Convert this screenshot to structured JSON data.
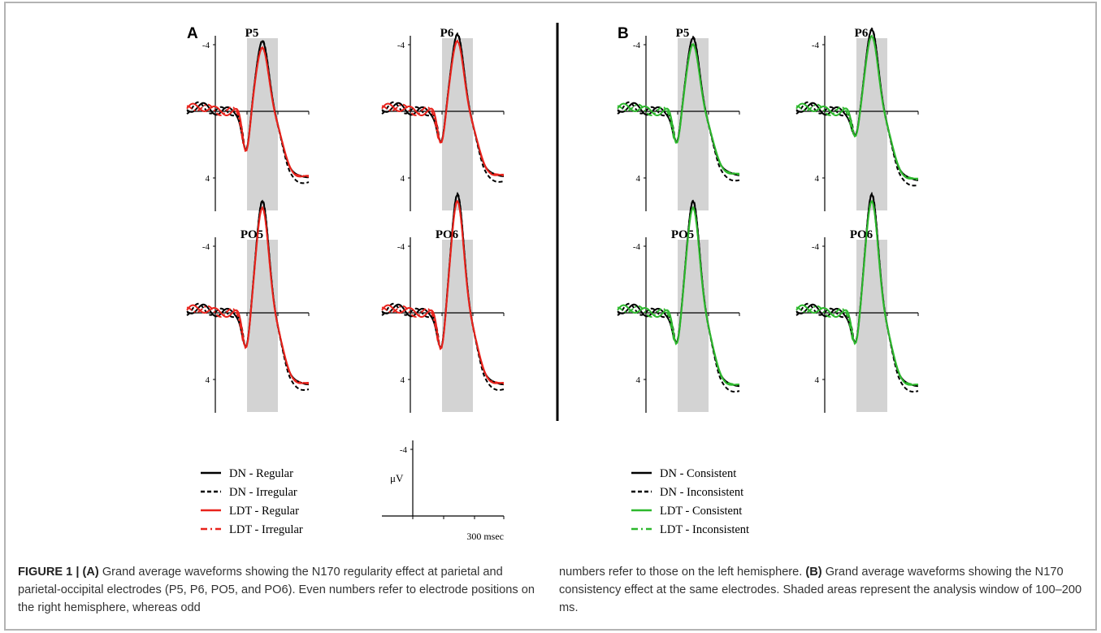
{
  "panels": [
    {
      "letter": "A",
      "plots": [
        {
          "title": "P5",
          "shape": [
            -0.3,
            -3.1,
            -4.3,
            4.0,
            3.8
          ]
        },
        {
          "title": "P6",
          "shape": [
            -0.3,
            -2.5,
            -4.7,
            3.9,
            3.8
          ]
        },
        {
          "title": "PO5",
          "shape": [
            -0.3,
            -2.8,
            -6.8,
            4.3,
            4.2
          ]
        },
        {
          "title": "PO6",
          "shape": [
            -0.3,
            -2.9,
            -7.2,
            4.3,
            4.2
          ]
        }
      ]
    },
    {
      "letter": "B",
      "plots": [
        {
          "title": "P5",
          "shape": [
            -0.3,
            -2.5,
            -4.5,
            3.8,
            3.8
          ]
        },
        {
          "title": "P6",
          "shape": [
            -0.3,
            -2.0,
            -5.0,
            4.1,
            4.1
          ]
        },
        {
          "title": "PO5",
          "shape": [
            -0.3,
            -2.5,
            -6.8,
            4.4,
            4.3
          ]
        },
        {
          "title": "PO6",
          "shape": [
            -0.3,
            -2.5,
            -7.2,
            4.4,
            4.3
          ]
        }
      ]
    }
  ],
  "tick_neg": "-4",
  "tick_pos": "4",
  "scale": {
    "tick": "-4",
    "ylabel": "μV",
    "xlabel": "300 msec"
  },
  "legend_a": [
    {
      "label": "DN - Regular",
      "color": "#000000",
      "style": "solid"
    },
    {
      "label": "DN - Irregular",
      "color": "#000000",
      "style": "dashed"
    },
    {
      "label": "LDT - Regular",
      "color": "#e8231c",
      "style": "solid"
    },
    {
      "label": "LDT - Irregular",
      "color": "#e8231c",
      "style": "dashdot"
    }
  ],
  "legend_b": [
    {
      "label": "DN - Consistent",
      "color": "#000000",
      "style": "solid"
    },
    {
      "label": "DN - Inconsistent",
      "color": "#000000",
      "style": "dashed"
    },
    {
      "label": "LDT - Consistent",
      "color": "#2db82d",
      "style": "solid"
    },
    {
      "label": "LDT - Inconsistent",
      "color": "#2db82d",
      "style": "dashdot"
    }
  ],
  "caption": {
    "label": "FIGURE 1 | (A)",
    "left_text": " Grand average waveforms showing the N170 regularity effect at parietal and parietal-occipital electrodes (P5, P6, PO5, and PO6). Even numbers refer to electrode positions on the right hemisphere, whereas odd",
    "right_text_1": "numbers refer to those on the left hemisphere. ",
    "label_b": "(B)",
    "right_text_2": " Grand average waveforms showing the N170 consistency effect at the same electrodes. Shaded areas represent the analysis window of 100–200 ms."
  }
}
